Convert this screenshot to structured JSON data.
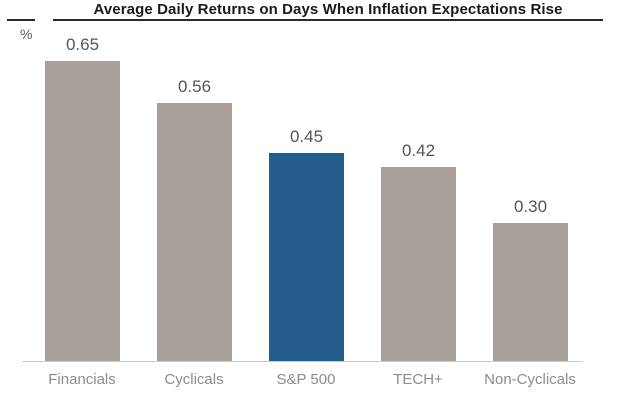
{
  "header": {
    "title": "Average Daily Returns on Days When Inflation Expectations Rise",
    "unit_label": "%"
  },
  "chart_data": {
    "type": "bar",
    "title": "Average Daily Returns on Days When Inflation Expectations Rise",
    "ylabel": "%",
    "xlabel": "",
    "categories": [
      "Financials",
      "Cyclicals",
      "S&P 500",
      "TECH+",
      "Non-Cyclicals"
    ],
    "values": [
      0.65,
      0.56,
      0.45,
      0.42,
      0.3
    ],
    "value_labels": [
      "0.65",
      "0.56",
      "0.45",
      "0.42",
      "0.30"
    ],
    "highlight_category": "S&P 500",
    "highlight_index": 2,
    "colors": {
      "bar_default": "#a9a29c",
      "bar_highlight": "#235d89",
      "title_text": "#1a1a1a",
      "value_label": "#555555",
      "category_label": "#8c8c8c",
      "axis_line": "#c9c9c9",
      "title_rule": "#2b2b2b",
      "background": "#ffffff"
    },
    "ylim": [
      0,
      0.78
    ],
    "grid": false,
    "legend": "none"
  }
}
